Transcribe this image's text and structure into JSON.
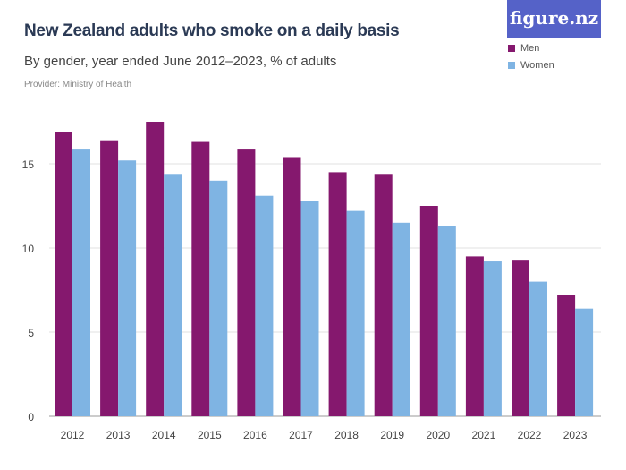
{
  "chart_data": {
    "type": "bar",
    "title": "New Zealand adults who smoke on a daily basis",
    "subtitle": "By gender, year ended June 2012–2023, % of adults",
    "provider": "Provider: Ministry of Health",
    "categories": [
      "2012",
      "2013",
      "2014",
      "2015",
      "2016",
      "2017",
      "2018",
      "2019",
      "2020",
      "2021",
      "2022",
      "2023"
    ],
    "series": [
      {
        "name": "Men",
        "color": "#85186e",
        "values": [
          16.9,
          16.4,
          17.5,
          16.3,
          15.9,
          15.4,
          14.5,
          14.4,
          12.5,
          9.5,
          9.3,
          7.2
        ]
      },
      {
        "name": "Women",
        "color": "#7fb4e3",
        "values": [
          15.9,
          15.2,
          14.4,
          14.0,
          13.1,
          12.8,
          12.2,
          11.5,
          11.3,
          9.2,
          8.0,
          6.4
        ]
      }
    ],
    "yticks": [
      "0",
      "5",
      "10",
      "15"
    ],
    "ylim": [
      0,
      18
    ],
    "grid": true,
    "legend": "top-right"
  },
  "logo": "figure.nz"
}
